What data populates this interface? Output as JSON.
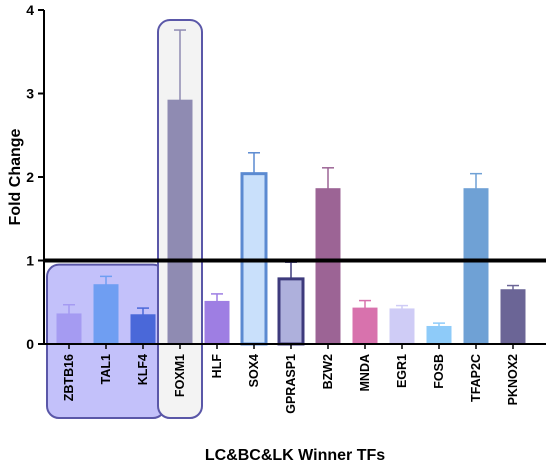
{
  "chart_data": {
    "type": "bar",
    "title": "",
    "xlabel": "LC&BC&LK Winner TFs",
    "ylabel": "Fold Change",
    "ylim": [
      0,
      4
    ],
    "yticks": [
      "0",
      "1",
      "2",
      "3",
      "4"
    ],
    "reference_line": 1,
    "grid": false,
    "categories": [
      "ZBTB16",
      "TAL1",
      "KLF4",
      "FOXM1",
      "HLF",
      "SOX4",
      "GPRASP1",
      "BZW2",
      "MNDA",
      "EGR1",
      "FOSB",
      "TFAP2C",
      "PKNOX2"
    ],
    "values": [
      0.36,
      0.71,
      0.35,
      2.92,
      0.51,
      2.04,
      0.78,
      1.86,
      0.43,
      0.42,
      0.21,
      1.86,
      0.65
    ],
    "errors": [
      0.11,
      0.1,
      0.08,
      0.84,
      0.09,
      0.25,
      0.2,
      0.25,
      0.09,
      0.04,
      0.04,
      0.18,
      0.05
    ],
    "bar_fill": [
      "#a59bf2",
      "#6f9ef2",
      "#4a68d9",
      "#8f8bb2",
      "#9e7ee3",
      "#c9e0fb",
      "#aeb0dc",
      "#9c6495",
      "#d872ad",
      "#cfccf6",
      "#8ecbf9",
      "#6fa1d5",
      "#6b6596"
    ],
    "bar_stroke": [
      "#a59bf2",
      "#6f9ef2",
      "#4a68d9",
      "#8f8bb2",
      "#9e7ee3",
      "#5b8ad1",
      "#3d3a7c",
      "#9c6495",
      "#d872ad",
      "#cfccf6",
      "#8ecbf9",
      "#6fa1d5",
      "#6b6596"
    ],
    "highlight_groups": [
      {
        "categories": [
          "ZBTB16",
          "TAL1",
          "KLF4"
        ],
        "fill": "#c3c1fa",
        "stroke": "#5a57a8"
      },
      {
        "categories": [
          "FOXM1"
        ],
        "fill": "#f3f3f3",
        "stroke": "#5a57a8"
      }
    ],
    "colors": {
      "axis": "#000000",
      "reference_line": "#000000"
    }
  }
}
